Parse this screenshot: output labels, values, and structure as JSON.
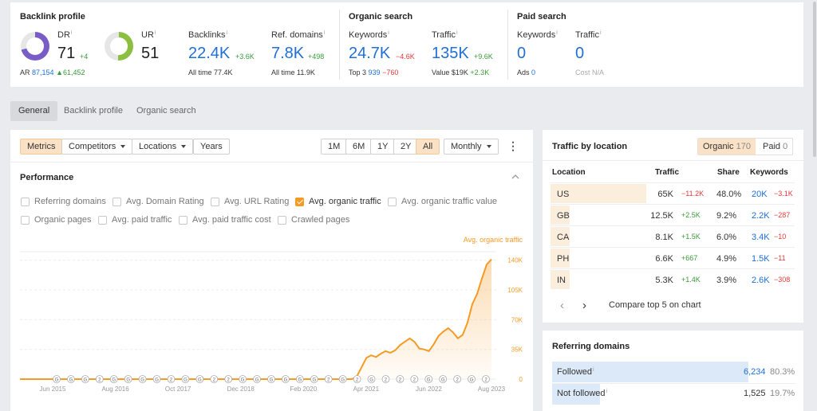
{
  "backlink_profile": {
    "title": "Backlink profile",
    "dr": {
      "label": "DR",
      "info": "i",
      "value": "71",
      "delta": "+4",
      "level": 0.71,
      "color": "#7a5cc6"
    },
    "ur": {
      "label": "UR",
      "info": "i",
      "value": "51",
      "level": 0.51,
      "color": "#8cbf3f"
    },
    "ar": {
      "label": "AR",
      "value": "87,154",
      "delta": "▲61,452"
    },
    "backlinks": {
      "label": "Backlinks",
      "info": "i",
      "value": "22.4K",
      "delta": "+3.6K",
      "sub_label": "All time",
      "sub_value": "77.4K"
    },
    "ref_domains": {
      "label": "Ref. domains",
      "info": "i",
      "value": "7.8K",
      "delta": "+498",
      "sub_label": "All time",
      "sub_value": "11.9K"
    }
  },
  "organic_search": {
    "title": "Organic search",
    "keywords": {
      "label": "Keywords",
      "info": "i",
      "value": "24.7K",
      "delta": "−4.6K",
      "sub_label": "Top 3",
      "sub_value": "939",
      "sub_delta": "−760"
    },
    "traffic": {
      "label": "Traffic",
      "info": "i",
      "value": "135K",
      "delta": "+9.6K",
      "sub_label": "Value",
      "sub_value": "$19K",
      "sub_delta": "+2.3K"
    }
  },
  "paid_search": {
    "title": "Paid search",
    "keywords": {
      "label": "Keywords",
      "info": "i",
      "value": "0",
      "sub_label": "Ads",
      "sub_value": "0"
    },
    "traffic": {
      "label": "Traffic",
      "info": "i",
      "value": "0",
      "sub_label": "Cost",
      "sub_value": "N/A"
    }
  },
  "tabs": [
    "General",
    "Backlink profile",
    "Organic search"
  ],
  "toolbar": {
    "metrics": "Metrics",
    "competitors": "Competitors",
    "locations": "Locations",
    "years": "Years",
    "ranges": [
      "1M",
      "6M",
      "1Y",
      "2Y",
      "All"
    ],
    "interval": "Monthly",
    "more": "⋮"
  },
  "performance": {
    "title": "Performance",
    "checkboxes": [
      {
        "label": "Referring domains",
        "checked": false
      },
      {
        "label": "Avg. Domain Rating",
        "checked": false
      },
      {
        "label": "Avg. URL Rating",
        "checked": false
      },
      {
        "label": "Avg. organic traffic",
        "checked": true
      },
      {
        "label": "Avg. organic traffic value",
        "checked": false
      },
      {
        "label": "Organic pages",
        "checked": false
      },
      {
        "label": "Avg. paid traffic",
        "checked": false
      },
      {
        "label": "Avg. paid traffic cost",
        "checked": false
      },
      {
        "label": "Crawled pages",
        "checked": false
      }
    ]
  },
  "chart_data": {
    "type": "area",
    "series": [
      {
        "name": "Avg. organic traffic",
        "color": "#f59a23"
      }
    ],
    "x_ticks": [
      "Jun 2015",
      "Aug 2016",
      "Oct 2017",
      "Dec 2018",
      "Feb 2020",
      "Apr 2021",
      "Jun 2022",
      "Aug 2023"
    ],
    "y_ticks": [
      "140K",
      "105K",
      "70K",
      "35K",
      "0"
    ],
    "ylim": [
      0,
      150000
    ],
    "x": [
      "2015-06",
      "2015-12",
      "2016-06",
      "2016-12",
      "2017-06",
      "2017-12",
      "2018-06",
      "2018-12",
      "2019-06",
      "2019-12",
      "2020-06",
      "2020-12",
      "2021-03",
      "2021-04",
      "2021-05",
      "2021-06",
      "2021-07",
      "2021-08",
      "2021-09",
      "2021-10",
      "2021-11",
      "2021-12",
      "2022-01",
      "2022-02",
      "2022-03",
      "2022-04",
      "2022-05",
      "2022-06",
      "2022-07",
      "2022-08",
      "2022-09",
      "2022-10",
      "2022-11",
      "2022-12",
      "2023-01",
      "2023-02",
      "2023-03",
      "2023-04",
      "2023-05",
      "2023-06",
      "2023-07",
      "2023-08"
    ],
    "y": [
      0,
      0,
      0,
      0,
      0,
      0,
      0,
      0,
      0,
      0,
      0,
      0,
      0,
      3000,
      14000,
      25000,
      28000,
      26000,
      30000,
      33000,
      31000,
      34000,
      40000,
      44000,
      48000,
      44000,
      36000,
      35000,
      33000,
      41000,
      51000,
      56000,
      60000,
      55000,
      48000,
      52000,
      66000,
      88000,
      100000,
      118000,
      135000,
      141000
    ],
    "annotation_markers": [
      "G",
      "G",
      "G",
      "2",
      "G",
      "G",
      "G",
      "G",
      "2",
      "G",
      "G",
      "2",
      "2",
      "G",
      "G",
      "G",
      "G",
      "G",
      "G",
      "2",
      "G",
      "2",
      "G",
      "2",
      "2",
      "2",
      "G",
      "G",
      "2",
      "G",
      "2"
    ]
  },
  "traffic_by_location": {
    "title": "Traffic by location",
    "toggle_organic": "Organic",
    "toggle_organic_count": "170",
    "toggle_paid": "Paid",
    "toggle_paid_count": "0",
    "headers": {
      "location": "Location",
      "traffic": "Traffic",
      "share": "Share",
      "keywords": "Keywords"
    },
    "rows": [
      {
        "location": "US",
        "traffic": "65K",
        "traffic_delta": "−11.2K",
        "share": "48.0%",
        "share_value": 0.48,
        "keywords": "20K",
        "keywords_delta": "−3.1K",
        "td": "red",
        "kd": "red"
      },
      {
        "location": "GB",
        "traffic": "12.5K",
        "traffic_delta": "+2.5K",
        "share": "9.2%",
        "share_value": 0.092,
        "keywords": "2.2K",
        "keywords_delta": "−287",
        "td": "green",
        "kd": "red"
      },
      {
        "location": "CA",
        "traffic": "8.1K",
        "traffic_delta": "+1.5K",
        "share": "6.0%",
        "share_value": 0.06,
        "keywords": "3.4K",
        "keywords_delta": "−10",
        "td": "green",
        "kd": "red"
      },
      {
        "location": "PH",
        "traffic": "6.6K",
        "traffic_delta": "+667",
        "share": "4.9%",
        "share_value": 0.049,
        "keywords": "1.5K",
        "keywords_delta": "−11",
        "td": "green",
        "kd": "red"
      },
      {
        "location": "IN",
        "traffic": "5.3K",
        "traffic_delta": "+1.4K",
        "share": "3.9%",
        "share_value": 0.039,
        "keywords": "2.6K",
        "keywords_delta": "−308",
        "td": "green",
        "kd": "red"
      }
    ],
    "prev": "‹",
    "next": "›",
    "compare": "Compare top 5 on chart"
  },
  "referring_domains": {
    "title": "Referring domains",
    "rows": [
      {
        "label": "Followed",
        "info": "i",
        "value": "6,234",
        "pct": "80.3%",
        "share_value": 0.803
      },
      {
        "label": "Not followed",
        "info": "i",
        "value": "1,525",
        "pct": "19.7%",
        "share_value": 0.197
      }
    ]
  }
}
